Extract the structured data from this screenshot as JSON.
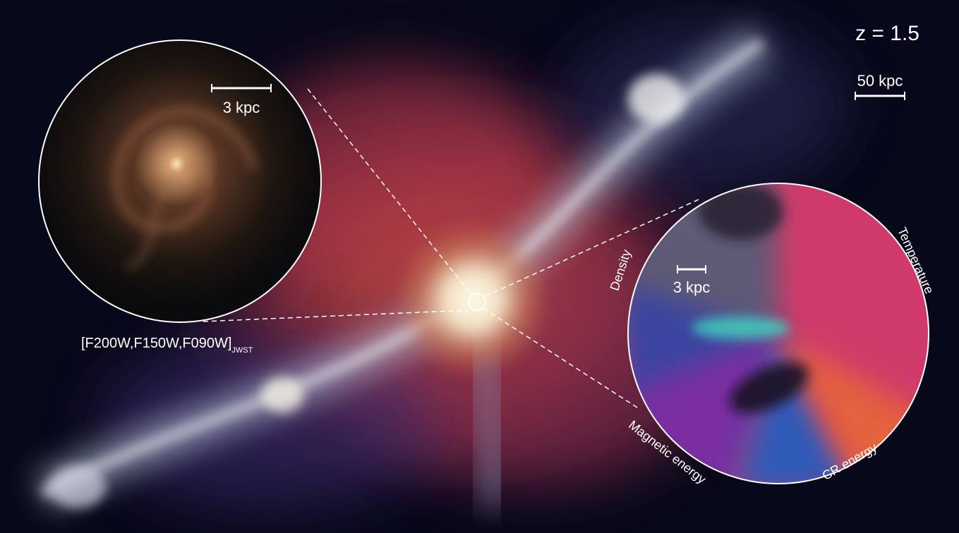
{
  "labels": {
    "redshift": "z = 1.5",
    "scale_bar": "50 kpc"
  },
  "left_inset": {
    "scale_bar": "3 kpc",
    "filters": "[F200W,F150W,F090W]",
    "filters_subscript": "JWST"
  },
  "right_inset": {
    "scale_bar": "3 kpc",
    "quadrants": [
      "Density",
      "Temperature",
      "CR energy",
      "Magnetic energy"
    ]
  }
}
